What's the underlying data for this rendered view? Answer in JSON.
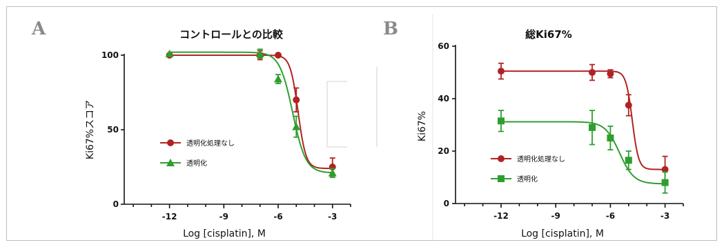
{
  "chart_data": [
    {
      "panel": "A",
      "type": "line",
      "title": "コントロールとの比較",
      "xlabel": "Log [cisplatin], M",
      "ylabel": "Ki67%スコア",
      "xlim": [
        -14.5,
        -2
      ],
      "ylim": [
        0,
        100
      ],
      "xticks": [
        -12,
        -9,
        -6,
        -3
      ],
      "yticks": [
        0,
        50,
        100
      ],
      "legend_position": "center-left",
      "series": [
        {
          "name": "透明化処理なし",
          "color": "#b22222",
          "marker": "circle",
          "x": [
            -12,
            -7,
            -6,
            -5,
            -3
          ],
          "y": [
            100,
            100,
            100,
            70,
            25
          ],
          "err": [
            0,
            3,
            0,
            8,
            6
          ],
          "fit": {
            "top": 100,
            "bottom": 24,
            "logIC50": -4.9,
            "hill": 2.0
          }
        },
        {
          "name": "透明化",
          "color": "#2e9e2e",
          "marker": "triangle",
          "x": [
            -12,
            -7,
            -6,
            -5,
            -3
          ],
          "y": [
            101,
            101,
            84,
            52,
            21
          ],
          "err": [
            0,
            3,
            3,
            7,
            3
          ],
          "fit": {
            "top": 102,
            "bottom": 21,
            "logIC50": -5.2,
            "hill": 1.2
          }
        }
      ]
    },
    {
      "panel": "B",
      "type": "line",
      "title": "総Ki67%",
      "xlabel": "Log [cisplatin], M",
      "ylabel": "Ki67%",
      "xlim": [
        -14.5,
        -2
      ],
      "ylim": [
        0,
        60
      ],
      "xticks": [
        -12,
        -9,
        -6,
        -3
      ],
      "yticks": [
        0,
        20,
        40,
        60
      ],
      "legend_position": "bottom-left",
      "series": [
        {
          "name": "透明化処理なし",
          "color": "#b22222",
          "marker": "circle",
          "x": [
            -12,
            -7,
            -6,
            -5,
            -3
          ],
          "y": [
            50.5,
            50,
            49.5,
            37.5,
            13
          ],
          "err": [
            3,
            3,
            1.5,
            4,
            5
          ],
          "fit": {
            "top": 50.5,
            "bottom": 13,
            "logIC50": -4.8,
            "hill": 2.5
          }
        },
        {
          "name": "透明化",
          "color": "#2e9e2e",
          "marker": "square",
          "x": [
            -12,
            -7,
            -6,
            -5,
            -3
          ],
          "y": [
            31.5,
            29,
            25,
            16.5,
            8
          ],
          "err": [
            4,
            6.5,
            4.5,
            3.5,
            4
          ],
          "fit": {
            "top": 31.2,
            "bottom": 7.5,
            "logIC50": -5.5,
            "hill": 1.1
          }
        }
      ]
    }
  ]
}
